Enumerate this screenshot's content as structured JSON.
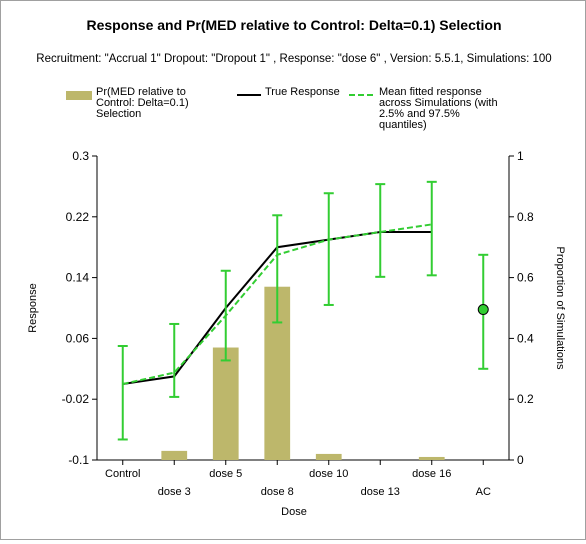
{
  "chart_data": {
    "type": "bar+line",
    "title": "Response and Pr(MED relative to Control: Delta=0.1) Selection",
    "subtitle": "Recruitment: \"Accrual 1\" Dropout: \"Dropout 1\" , Response: \"dose 6\" , Version: 5.5.1, Simulations: 100",
    "xlabel": "Dose",
    "ylabel_left": "Response",
    "ylabel_right": "Proportion of Simulations",
    "categories": [
      "Control",
      "dose 3",
      "dose 5",
      "dose 8",
      "dose 10",
      "dose 13",
      "dose 16",
      "AC"
    ],
    "ylim_left": [
      -0.1,
      0.3
    ],
    "yticks_left": [
      "-0.1",
      "-0.02",
      "0.06",
      "0.14",
      "0.22",
      "0.3"
    ],
    "ylim_right": [
      0,
      1
    ],
    "yticks_right": [
      "0",
      "0.2",
      "0.4",
      "0.6",
      "0.8",
      "1"
    ],
    "legend": {
      "placement": "top",
      "bar_label": "Pr(MED relative to Control: Delta=0.1) Selection",
      "true_label": "True Response",
      "fit_label": "Mean fitted response across Simulations (with 2.5% and 97.5% quantiles)"
    },
    "bar_series": {
      "name": "Pr(MED relative to Control: Delta=0.1) Selection",
      "values": [
        0,
        0.03,
        0.37,
        0.57,
        0.02,
        0,
        0.01,
        null
      ]
    },
    "true_response": {
      "name": "True Response",
      "values": [
        0,
        0.01,
        0.1,
        0.18,
        0.19,
        0.2,
        0.2,
        null
      ]
    },
    "fitted_response": {
      "name": "Mean fitted response across Simulations (with 2.5% and 97.5% quantiles)",
      "mean": [
        0,
        0.015,
        0.09,
        0.17,
        0.19,
        0.2,
        0.21,
        0.098
      ],
      "lower": [
        -0.073,
        -0.017,
        0.031,
        0.081,
        0.104,
        0.141,
        0.143,
        0.02
      ],
      "upper": [
        0.05,
        0.079,
        0.149,
        0.222,
        0.251,
        0.263,
        0.266,
        0.17
      ]
    },
    "colors": {
      "bar": "#bdb76b",
      "true_line": "#000000",
      "fit_line": "#32cd32",
      "active_comparator_point": "#32cd32"
    },
    "grid": false
  }
}
